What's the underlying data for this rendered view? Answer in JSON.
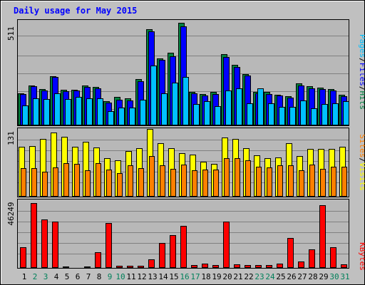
{
  "chart_data": {
    "type": "bar",
    "title": "Daily usage for May 2015",
    "x": [
      "1",
      "2",
      "3",
      "4",
      "5",
      "6",
      "7",
      "8",
      "9",
      "10",
      "11",
      "12",
      "13",
      "14",
      "15",
      "16",
      "17",
      "18",
      "19",
      "20",
      "21",
      "22",
      "23",
      "24",
      "25",
      "26",
      "27",
      "28",
      "29",
      "30",
      "31"
    ],
    "weekend_days": [
      "2",
      "3",
      "9",
      "10",
      "16",
      "17",
      "23",
      "24",
      "30",
      "31"
    ],
    "panels": [
      {
        "id": "hits",
        "max_label": "511",
        "ymax": 511,
        "series": [
          {
            "name": "Hits",
            "color": "#008040",
            "values": [
              157,
              193,
              178,
              241,
              174,
              175,
              193,
              188,
              117,
              139,
              131,
              226,
              471,
              328,
              353,
              501,
              162,
              152,
              163,
              348,
              297,
              252,
              163,
              165,
              150,
              143,
              204,
              192,
              185,
              178,
              151
            ]
          },
          {
            "name": "Files",
            "color": "#0000ff",
            "values": [
              153,
              190,
              172,
              235,
              168,
              171,
              187,
              181,
              111,
              125,
              123,
              214,
              458,
              319,
              336,
              482,
              155,
              147,
              154,
              335,
              285,
              243,
              155,
              153,
              146,
              137,
              195,
              182,
              178,
              172,
              143
            ]
          },
          {
            "name": "Pages",
            "color": "#00c0ff",
            "values": [
              98,
              132,
              127,
              157,
              130,
              140,
              132,
              133,
              68,
              86,
              88,
              125,
              292,
              155,
              207,
              236,
              106,
              117,
              95,
              170,
              180,
              109,
              180,
              108,
              92,
              92,
              122,
              83,
              105,
              108,
              118
            ]
          }
        ]
      },
      {
        "id": "visits",
        "max_label": "131",
        "ymax": 131,
        "series": [
          {
            "name": "Visits",
            "color": "#ffff00",
            "values": [
              96,
              98,
              112,
              124,
              116,
              96,
              106,
              95,
              74,
              70,
              88,
              94,
              131,
              103,
              94,
              84,
              82,
              68,
              64,
              114,
              112,
              94,
              80,
              75,
              76,
              103,
              78,
              92,
              93,
              93,
              96
            ]
          },
          {
            "name": "Sites",
            "color": "#ff8000",
            "values": [
              55,
              55,
              48,
              56,
              65,
              64,
              51,
              65,
              53,
              46,
              60,
              55,
              78,
              61,
              54,
              62,
              51,
              53,
              53,
              74,
              75,
              71,
              58,
              56,
              61,
              60,
              51,
              62,
              54,
              58,
              58
            ]
          }
        ]
      },
      {
        "id": "kbytes",
        "max_label": "46249",
        "ymax": 46249,
        "series": [
          {
            "name": "KBytes",
            "color": "#ff0000",
            "values": [
              14280,
              44440,
              33200,
              31860,
              770,
              610,
              920,
              10930,
              30880,
              1240,
              1280,
              1500,
              5980,
              17000,
              22500,
              28770,
              1740,
              2810,
              1740,
              31850,
              2460,
              1810,
              2190,
              1740,
              3060,
              20350,
              4290,
              12880,
              42850,
              14280,
              2600
            ]
          }
        ]
      }
    ]
  }
}
